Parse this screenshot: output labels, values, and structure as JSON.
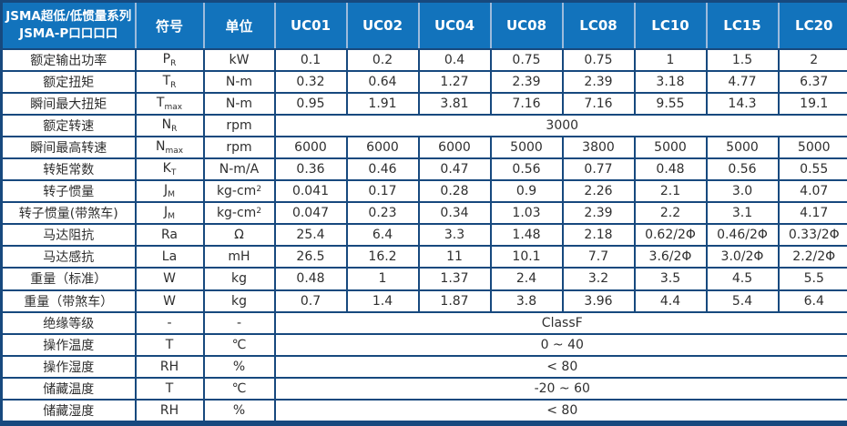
{
  "colors": {
    "header_background": "#1273BC",
    "header_text": "#FFFFFF",
    "grid_border": "#17497E",
    "header_divider": "#9DBBDC",
    "body_text": "#2F2F2F"
  },
  "table": {
    "header": {
      "series_title_line1": "JSMA超低/低惯量系列",
      "series_title_line2": "JSMA-P口口口口",
      "symbol_label": "符号",
      "unit_label": "单位",
      "models": [
        "UC01",
        "UC02",
        "UC04",
        "UC08",
        "LC08",
        "LC10",
        "LC15",
        "LC20"
      ]
    },
    "rows": [
      {
        "label": "额定输出功率",
        "symbol": "P",
        "symbol_sub": "R",
        "unit": "kW",
        "values": [
          "0.1",
          "0.2",
          "0.4",
          "0.75",
          "0.75",
          "1",
          "1.5",
          "2"
        ]
      },
      {
        "label": "额定扭矩",
        "symbol": "T",
        "symbol_sub": "R",
        "unit": "N-m",
        "values": [
          "0.32",
          "0.64",
          "1.27",
          "2.39",
          "2.39",
          "3.18",
          "4.77",
          "6.37"
        ]
      },
      {
        "label": "瞬间最大扭矩",
        "symbol": "T",
        "symbol_sub": "max",
        "unit": "N-m",
        "values": [
          "0.95",
          "1.91",
          "3.81",
          "7.16",
          "7.16",
          "9.55",
          "14.3",
          "19.1"
        ]
      },
      {
        "label": "额定转速",
        "symbol": "N",
        "symbol_sub": "R",
        "unit": "rpm",
        "span": "3000"
      },
      {
        "label": "瞬间最高转速",
        "symbol": "N",
        "symbol_sub": "max",
        "unit": "rpm",
        "values": [
          "6000",
          "6000",
          "6000",
          "5000",
          "3800",
          "5000",
          "5000",
          "5000"
        ]
      },
      {
        "label": "转矩常数",
        "symbol": "K",
        "symbol_sub": "T",
        "unit": "N-m/A",
        "values": [
          "0.36",
          "0.46",
          "0.47",
          "0.56",
          "0.77",
          "0.48",
          "0.56",
          "0.55"
        ]
      },
      {
        "label": "转子惯量",
        "symbol": "J",
        "symbol_sub": "M",
        "unit": "kg-cm",
        "unit_sup": "2",
        "values": [
          "0.041",
          "0.17",
          "0.28",
          "0.9",
          "2.26",
          "2.1",
          "3.0",
          "4.07"
        ]
      },
      {
        "label": "转子惯量(带煞车)",
        "symbol": "J",
        "symbol_sub": "M",
        "unit": "kg-cm",
        "unit_sup": "2",
        "values": [
          "0.047",
          "0.23",
          "0.34",
          "1.03",
          "2.39",
          "2.2",
          "3.1",
          "4.17"
        ]
      },
      {
        "label": "马达阻抗",
        "symbol": "Ra",
        "unit": "Ω",
        "values": [
          "25.4",
          "6.4",
          "3.3",
          "1.48",
          "2.18",
          "0.62/2Φ",
          "0.46/2Φ",
          "0.33/2Φ"
        ]
      },
      {
        "label": "马达感抗",
        "symbol": "La",
        "unit": "mH",
        "values": [
          "26.5",
          "16.2",
          "11",
          "10.1",
          "7.7",
          "3.6/2Φ",
          "3.0/2Φ",
          "2.2/2Φ"
        ]
      },
      {
        "label": "重量（标准）",
        "symbol": "W",
        "unit": "kg",
        "values": [
          "0.48",
          "1",
          "1.37",
          "2.4",
          "3.2",
          "3.5",
          "4.5",
          "5.5"
        ]
      },
      {
        "label": "重量（带煞车）",
        "symbol": "W",
        "unit": "kg",
        "values": [
          "0.7",
          "1.4",
          "1.87",
          "3.8",
          "3.96",
          "4.4",
          "5.4",
          "6.4"
        ]
      },
      {
        "label": "绝缘等级",
        "symbol": "-",
        "unit": "-",
        "span": "ClassF"
      },
      {
        "label": "操作温度",
        "symbol": "T",
        "unit": "℃",
        "span": "0 ~ 40"
      },
      {
        "label": "操作湿度",
        "symbol": "RH",
        "unit": "%",
        "span": "< 80"
      },
      {
        "label": "储藏温度",
        "symbol": "T",
        "unit": "℃",
        "span": "-20 ~ 60"
      },
      {
        "label": "储藏湿度",
        "symbol": "RH",
        "unit": "%",
        "span": "< 80"
      }
    ]
  }
}
